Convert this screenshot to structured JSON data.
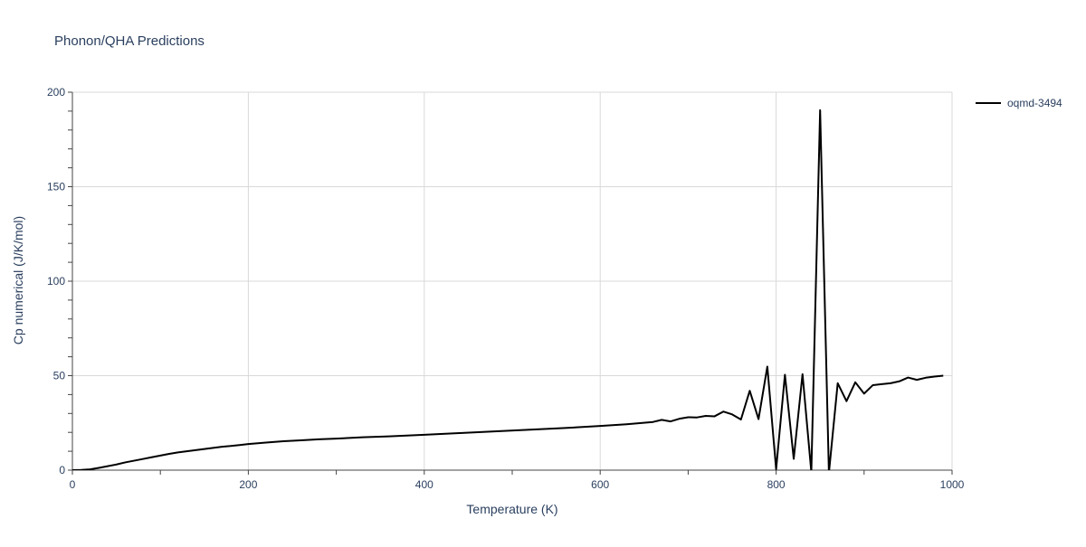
{
  "chart_data": {
    "type": "line",
    "title": "Phonon/QHA Predictions",
    "xlabel": "Temperature (K)",
    "ylabel": "Cp numerical (J/K/mol)",
    "xlim": [
      0,
      1000
    ],
    "ylim": [
      0,
      200
    ],
    "xticks": [
      0,
      200,
      400,
      600,
      800,
      1000
    ],
    "yticks": [
      0,
      50,
      100,
      150,
      200
    ],
    "grid": true,
    "legend_position": "top-right",
    "series": [
      {
        "name": "oqmd-3494",
        "color": "#000000",
        "x": [
          0,
          10,
          20,
          30,
          40,
          50,
          60,
          70,
          80,
          90,
          100,
          110,
          120,
          130,
          140,
          150,
          160,
          170,
          180,
          190,
          200,
          220,
          240,
          260,
          280,
          300,
          330,
          360,
          400,
          440,
          480,
          520,
          560,
          600,
          630,
          660,
          670,
          680,
          690,
          700,
          710,
          720,
          730,
          740,
          750,
          760,
          770,
          780,
          790,
          800,
          810,
          820,
          830,
          840,
          850,
          860,
          870,
          880,
          890,
          900,
          910,
          920,
          930,
          940,
          950,
          960,
          970,
          980,
          990
        ],
        "y": [
          0,
          0.1,
          0.4,
          1.2,
          2.1,
          3.0,
          4.1,
          5.0,
          5.9,
          6.8,
          7.7,
          8.6,
          9.4,
          10.0,
          10.6,
          11.2,
          11.8,
          12.4,
          12.8,
          13.3,
          13.8,
          14.6,
          15.3,
          15.8,
          16.3,
          16.7,
          17.4,
          17.9,
          18.7,
          19.6,
          20.5,
          21.4,
          22.3,
          23.4,
          24.3,
          25.5,
          26.6,
          25.8,
          27.2,
          28.0,
          27.9,
          28.7,
          28.5,
          31.0,
          29.5,
          26.8,
          42.0,
          27.0,
          54.8,
          0.5,
          50.5,
          6.0,
          50.8,
          -1.0,
          190.5,
          -1.5,
          46.0,
          36.5,
          46.5,
          40.5,
          45.0,
          45.5,
          46.0,
          47.0,
          49.0,
          47.8,
          48.9,
          49.5,
          50.0
        ]
      }
    ]
  }
}
